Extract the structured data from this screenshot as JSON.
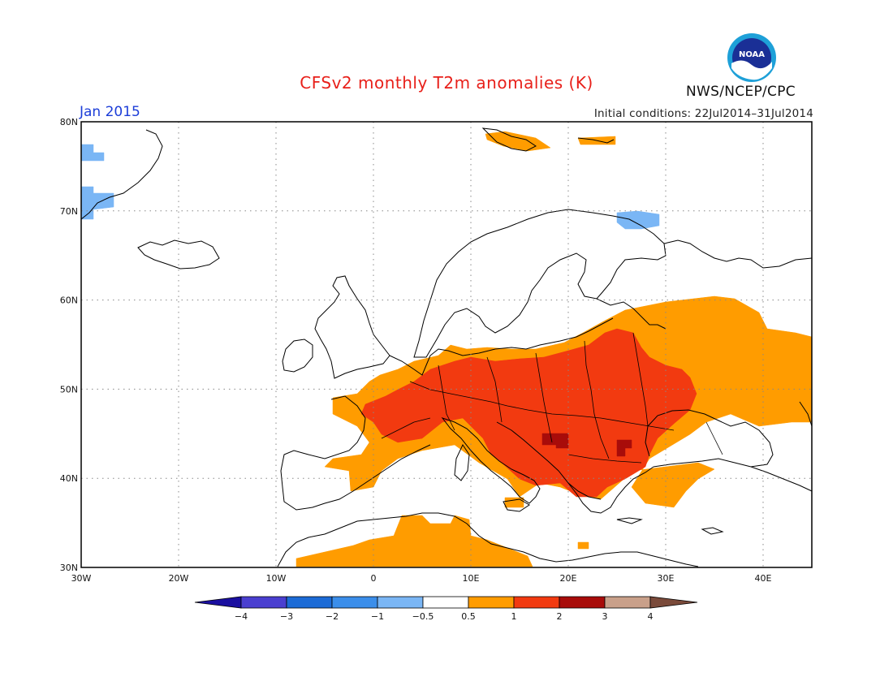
{
  "header": {
    "title": "CFSv2 monthly T2m anomalies (K)",
    "month": "Jan 2015",
    "initial_conditions": "Initial conditions: 22Jul2014–31Jul2014",
    "agency": "NWS/NCEP/CPC",
    "logo_text": "NOAA"
  },
  "axes": {
    "lon_ticks": [
      "30W",
      "20W",
      "10W",
      "0",
      "10E",
      "20E",
      "30E",
      "40E"
    ],
    "lat_ticks": [
      "80N",
      "70N",
      "60N",
      "50N",
      "40N",
      "30N"
    ],
    "lon_range": [
      -30,
      45
    ],
    "lat_range": [
      30,
      80
    ],
    "grid": "dotted"
  },
  "legend": {
    "labels": [
      "−4",
      "−3",
      "−2",
      "−1",
      "−0.5",
      "0.5",
      "1",
      "2",
      "3",
      "4"
    ],
    "colors": [
      "#1a0fa0",
      "#4a3fd0",
      "#1c6bd6",
      "#3b8eea",
      "#7ab6f5",
      "#ffffff",
      "#ff9c00",
      "#f23a10",
      "#a80c0a",
      "#c9a08a",
      "#7a4a3a"
    ]
  },
  "colors": {
    "pos_0_5_1": "#ff9c00",
    "pos_1_2": "#f23a10",
    "pos_2_3": "#a80c0a",
    "neg_0_5_1": "#7ab6f5"
  }
}
